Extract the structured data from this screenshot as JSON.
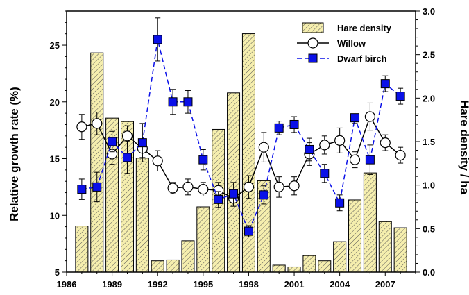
{
  "chart_data": {
    "type": "bar+line",
    "x": [
      1987,
      1988,
      1989,
      1990,
      1991,
      1992,
      1993,
      1994,
      1995,
      1996,
      1997,
      1998,
      1999,
      2000,
      2001,
      2002,
      2003,
      2004,
      2005,
      2006,
      2007,
      2008
    ],
    "xlim": [
      1986,
      2009
    ],
    "x_ticks": [
      "1986",
      "1989",
      "1992",
      "1995",
      "1998",
      "2001",
      "2004",
      "2007"
    ],
    "y_left": {
      "label": "Relative growth rate (%)",
      "lim": [
        5,
        28
      ],
      "ticks": [
        "5",
        "10",
        "15",
        "20",
        "25"
      ]
    },
    "y_right": {
      "label": "Hare density / ha",
      "lim": [
        0,
        3.0
      ],
      "ticks": [
        "0.0",
        "0.5",
        "1.0",
        "1.5",
        "2.0",
        "2.5",
        "3.0"
      ]
    },
    "series": [
      {
        "name": "Hare density",
        "kind": "bar",
        "axis": "right",
        "color": "#f5eeae",
        "values": [
          0.53,
          2.52,
          1.77,
          1.73,
          1.31,
          0.13,
          0.14,
          0.36,
          0.75,
          1.64,
          2.06,
          2.74,
          1.05,
          0.08,
          0.06,
          0.19,
          0.13,
          0.35,
          0.83,
          1.14,
          0.58,
          0.51
        ]
      },
      {
        "name": "Willow",
        "kind": "line",
        "axis": "left",
        "marker": "circle",
        "color": "#000000",
        "values": [
          17.8,
          18.1,
          15.4,
          17.0,
          15.9,
          14.8,
          12.4,
          12.5,
          12.3,
          12.2,
          11.5,
          12.5,
          16.0,
          12.5,
          12.6,
          15.4,
          16.2,
          16.6,
          14.9,
          18.7,
          16.4,
          15.3
        ],
        "errors": [
          1.1,
          1.0,
          0.9,
          0.9,
          0.8,
          0.9,
          0.5,
          0.7,
          0.6,
          0.7,
          0.7,
          1.0,
          1.3,
          0.9,
          0.8,
          1.0,
          0.8,
          1.1,
          0.7,
          1.2,
          0.7,
          0.7
        ]
      },
      {
        "name": "Dwarf birch",
        "kind": "line",
        "axis": "left",
        "marker": "square",
        "color": "#0a10e8",
        "values": [
          12.3,
          12.5,
          16.5,
          15.1,
          16.4,
          25.5,
          20.0,
          20.0,
          14.9,
          11.4,
          11.9,
          8.6,
          11.8,
          17.7,
          18.0,
          15.8,
          13.7,
          11.1,
          18.6,
          14.9,
          21.6,
          20.5
        ],
        "errors": [
          0.9,
          1.3,
          0.9,
          1.4,
          1.7,
          1.9,
          1.1,
          1.0,
          0.9,
          0.7,
          1.0,
          0.5,
          0.8,
          0.6,
          0.7,
          1.0,
          0.8,
          0.7,
          0.5,
          1.3,
          0.7,
          0.7
        ]
      }
    ],
    "legend": {
      "placement": "top-right"
    }
  }
}
